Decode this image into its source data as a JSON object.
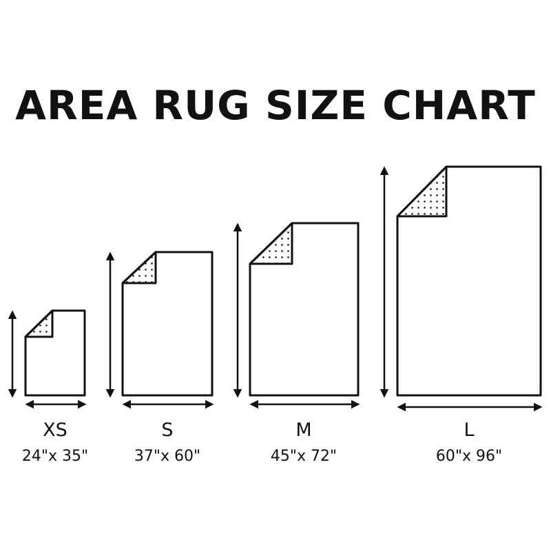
{
  "title": "AREA RUG SIZE CHART",
  "colors": {
    "line": "#111111",
    "background": "#ffffff"
  },
  "rugs": [
    {
      "size": "XS",
      "dimensions": "24\"x 35\"",
      "width_in": 24,
      "length_in": 35
    },
    {
      "size": "S",
      "dimensions": "37\"x 60\"",
      "width_in": 37,
      "length_in": 60
    },
    {
      "size": "M",
      "dimensions": "45\"x 72\"",
      "width_in": 45,
      "length_in": 72
    },
    {
      "size": "L",
      "dimensions": "60\"x 96\"",
      "width_in": 60,
      "length_in": 96
    }
  ]
}
